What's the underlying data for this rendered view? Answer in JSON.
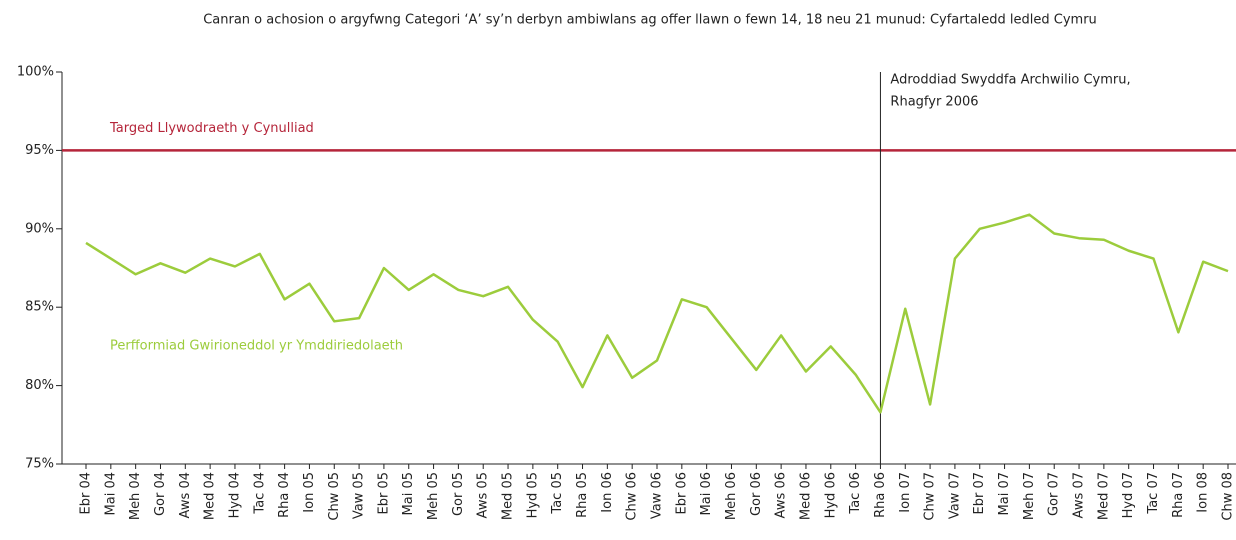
{
  "chart_data": {
    "type": "line",
    "title": "Canran o achosion o argyfwng Categori ‘A’ sy’n derbyn ambiwlans ag offer llawn o fewn 14, 18 neu 21 munud: Cyfartaledd ledled Cymru",
    "categories": [
      "Ebr 04",
      "Mai 04",
      "Meh 04",
      "Gor 04",
      "Aws 04",
      "Med 04",
      "Hyd 04",
      "Tac 04",
      "Rha 04",
      "Ion 05",
      "Chw 05",
      "Vaw 05",
      "Ebr 05",
      "Mai 05",
      "Meh 05",
      "Gor 05",
      "Aws 05",
      "Med 05",
      "Hyd 05",
      "Tac 05",
      "Rha 05",
      "Ion 06",
      "Chw 06",
      "Vaw 06",
      "Ebr 06",
      "Mai 06",
      "Meh 06",
      "Gor 06",
      "Aws 06",
      "Med 06",
      "Hyd 06",
      "Tac 06",
      "Rha 06",
      "Ion 07",
      "Chw 07",
      "Vaw 07",
      "Ebr 07",
      "Mai 07",
      "Meh 07",
      "Gor 07",
      "Aws 07",
      "Med 07",
      "Hyd 07",
      "Tac 07",
      "Rha 07",
      "Ion 08",
      "Chw 08"
    ],
    "series": [
      {
        "name": "Perfformiad Gwirioneddol yr Ymddiriedolaeth",
        "color": "#9ccc3c",
        "values": [
          89.1,
          88.1,
          87.1,
          87.8,
          87.2,
          88.1,
          87.6,
          88.4,
          85.5,
          86.5,
          84.1,
          84.3,
          87.5,
          86.1,
          87.1,
          86.1,
          85.7,
          86.3,
          84.2,
          82.8,
          79.9,
          83.2,
          80.5,
          81.6,
          85.5,
          85.0,
          83.0,
          81.0,
          83.2,
          80.9,
          82.5,
          80.7,
          78.3,
          84.9,
          78.8,
          88.1,
          90.0,
          90.4,
          90.9,
          89.7,
          89.4,
          89.3,
          88.6,
          88.1,
          83.4,
          87.9,
          87.3
        ]
      }
    ],
    "target": {
      "label": "Targed Llywodraeth y Cynulliad",
      "value": 95,
      "color": "#b5253a"
    },
    "marker": {
      "category": "Rha 06",
      "label": [
        "Adroddiad Swyddfa Archwilio Cymru,",
        "Rhagfyr 2006"
      ]
    },
    "ylim": [
      75,
      100
    ],
    "yticks": [
      {
        "value": 75,
        "label": "75%"
      },
      {
        "value": 80,
        "label": "80%"
      },
      {
        "value": 85,
        "label": "85%"
      },
      {
        "value": 90,
        "label": "90%"
      },
      {
        "value": 95,
        "label": "95%"
      },
      {
        "value": 100,
        "label": "100%"
      }
    ]
  }
}
